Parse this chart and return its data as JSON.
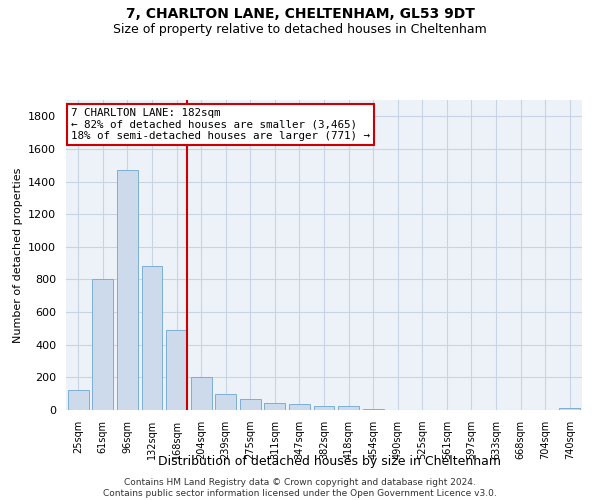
{
  "title": "7, CHARLTON LANE, CHELTENHAM, GL53 9DT",
  "subtitle": "Size of property relative to detached houses in Cheltenham",
  "xlabel": "Distribution of detached houses by size in Cheltenham",
  "ylabel": "Number of detached properties",
  "footer_line1": "Contains HM Land Registry data © Crown copyright and database right 2024.",
  "footer_line2": "Contains public sector information licensed under the Open Government Licence v3.0.",
  "bar_labels": [
    "25sqm",
    "61sqm",
    "96sqm",
    "132sqm",
    "168sqm",
    "204sqm",
    "239sqm",
    "275sqm",
    "311sqm",
    "347sqm",
    "382sqm",
    "418sqm",
    "454sqm",
    "490sqm",
    "525sqm",
    "561sqm",
    "597sqm",
    "633sqm",
    "668sqm",
    "704sqm",
    "740sqm"
  ],
  "bar_values": [
    120,
    800,
    1470,
    880,
    490,
    205,
    100,
    65,
    45,
    35,
    25,
    22,
    8,
    3,
    2,
    1,
    1,
    1,
    0,
    0,
    12
  ],
  "bar_color": "#ccdaeb",
  "bar_edge_color": "#7aafd4",
  "grid_color": "#c8d4e4",
  "vline_x_index": 4.42,
  "vline_color": "#cc0000",
  "annotation_text": "7 CHARLTON LANE: 182sqm\n← 82% of detached houses are smaller (3,465)\n18% of semi-detached houses are larger (771) →",
  "annotation_box_color": "#cc0000",
  "ylim": [
    0,
    1900
  ],
  "yticks": [
    0,
    200,
    400,
    600,
    800,
    1000,
    1200,
    1400,
    1600,
    1800
  ],
  "plot_bg_color": "#edf2f8",
  "title_fontsize": 10,
  "subtitle_fontsize": 9
}
